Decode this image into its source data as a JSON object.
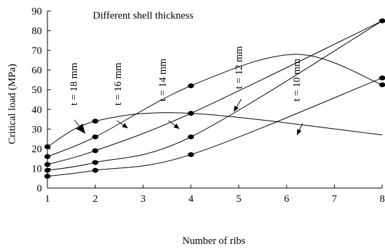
{
  "chart_data": {
    "type": "line",
    "title": "Different shell thickness",
    "xlabel": "Number of ribs",
    "ylabel": "Critical load (MPa)",
    "xlim": [
      1,
      8
    ],
    "ylim": [
      0,
      90
    ],
    "xticks": [
      "1",
      "2",
      "3",
      "4",
      "5",
      "6",
      "7",
      "8"
    ],
    "yticks": [
      "0",
      "10",
      "20",
      "30",
      "40",
      "50",
      "60",
      "70",
      "80",
      "90"
    ],
    "grid": false,
    "series": [
      {
        "name": "t = 18 mm",
        "x": [
          1,
          2,
          4,
          8
        ],
        "y": [
          21,
          34,
          38,
          27
        ],
        "markers": [
          true,
          true,
          false,
          false
        ]
      },
      {
        "name": "t = 16 mm",
        "x": [
          1,
          2,
          4,
          6.2,
          8
        ],
        "y": [
          16,
          26,
          52,
          68,
          52.5
        ],
        "markers": [
          true,
          true,
          true,
          false,
          true
        ]
      },
      {
        "name": "t = 14 mm",
        "x": [
          1,
          2,
          4,
          8
        ],
        "y": [
          12,
          19,
          38,
          85
        ],
        "markers": [
          true,
          true,
          true,
          true
        ]
      },
      {
        "name": "t = 12 mm",
        "x": [
          1,
          2,
          4,
          8
        ],
        "y": [
          9,
          13,
          26,
          85
        ],
        "markers": [
          true,
          true,
          true,
          false
        ]
      },
      {
        "name": "t = 10 mm",
        "x": [
          1,
          2,
          4,
          8
        ],
        "y": [
          6,
          9,
          17,
          56
        ],
        "markers": [
          true,
          true,
          true,
          true
        ]
      }
    ],
    "annotations": [
      {
        "text": "t = 18 mm"
      },
      {
        "text": "t = 16 mm"
      },
      {
        "text": "t = 14 mm"
      },
      {
        "text": "t = 12 mm"
      },
      {
        "text": "t = 10 mm"
      }
    ]
  }
}
